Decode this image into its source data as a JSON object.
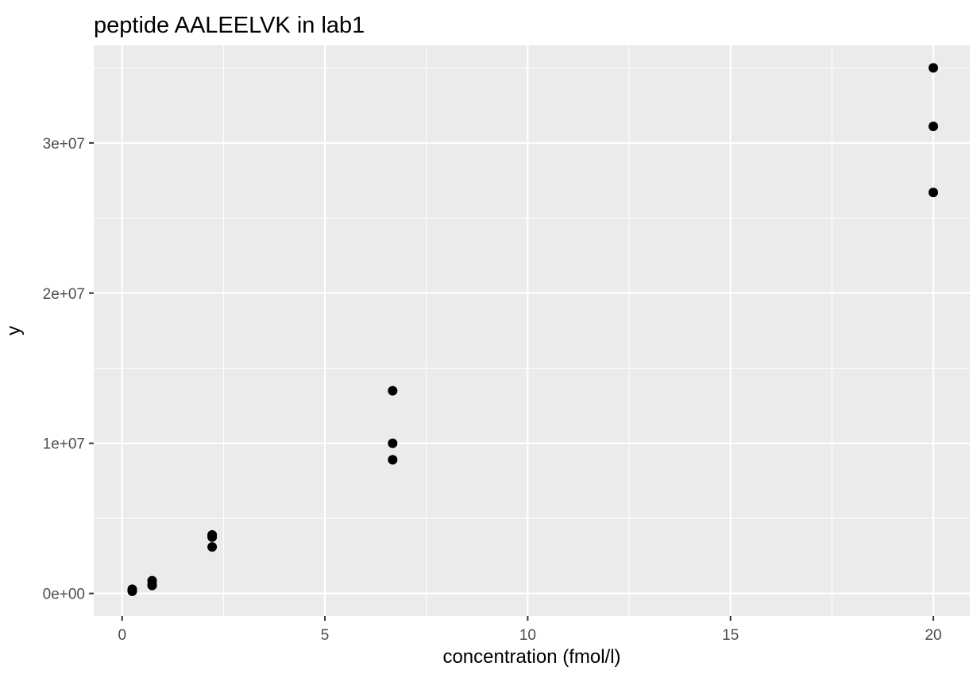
{
  "chart_data": {
    "type": "scatter",
    "title": "peptide AALEELVK in lab1",
    "xlabel": "concentration (fmol/l)",
    "ylabel": "y",
    "xlim": [
      -0.7,
      20.9
    ],
    "ylim": [
      -1500000,
      36500000
    ],
    "x_ticks": [
      0,
      5,
      10,
      15,
      20
    ],
    "x_tick_labels": [
      "0",
      "5",
      "10",
      "15",
      "20"
    ],
    "y_ticks": [
      0,
      10000000,
      20000000,
      30000000
    ],
    "y_tick_labels": [
      "0e+00",
      "1e+07",
      "2e+07",
      "3e+07"
    ],
    "x_minor_ticks": [
      2.5,
      7.5,
      12.5,
      17.5
    ],
    "y_minor_ticks": [
      5000000,
      15000000,
      25000000,
      35000000
    ],
    "grid": true,
    "legend": "none",
    "colors": {
      "panel_background": "#ebebeb",
      "grid_line": "#ffffff",
      "point": "#000000",
      "tick_label": "#4d4d4d",
      "tick_mark": "#333333"
    },
    "points": [
      {
        "x": 0.25,
        "y": 150000
      },
      {
        "x": 0.25,
        "y": 200000
      },
      {
        "x": 0.25,
        "y": 280000
      },
      {
        "x": 0.74,
        "y": 530000
      },
      {
        "x": 0.74,
        "y": 600000
      },
      {
        "x": 0.74,
        "y": 850000
      },
      {
        "x": 2.22,
        "y": 3100000
      },
      {
        "x": 2.22,
        "y": 3750000
      },
      {
        "x": 2.22,
        "y": 3900000
      },
      {
        "x": 6.67,
        "y": 8900000
      },
      {
        "x": 6.67,
        "y": 10000000
      },
      {
        "x": 6.67,
        "y": 13500000
      },
      {
        "x": 20,
        "y": 26700000
      },
      {
        "x": 20,
        "y": 31100000
      },
      {
        "x": 20,
        "y": 35000000
      }
    ]
  }
}
